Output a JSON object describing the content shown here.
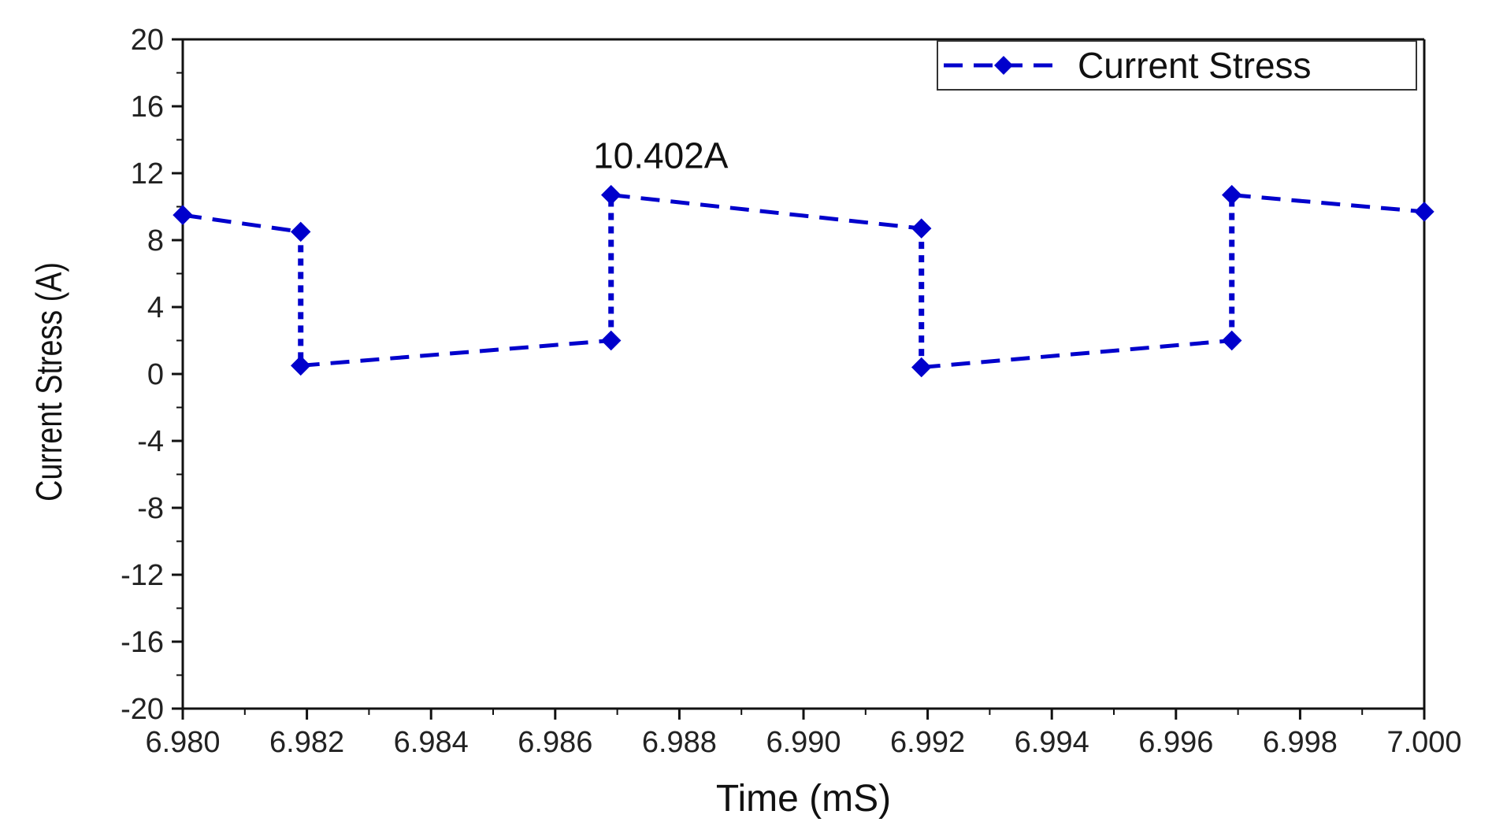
{
  "chart_data": {
    "type": "line",
    "title": "",
    "xlabel": "Time (mS)",
    "ylabel": "Current Stress (A)",
    "xlim": [
      6.98,
      7.0
    ],
    "ylim": [
      -20,
      20
    ],
    "x_ticks": [
      6.98,
      6.982,
      6.984,
      6.986,
      6.988,
      6.99,
      6.992,
      6.994,
      6.996,
      6.998,
      7.0
    ],
    "x_tick_labels": [
      "6.980",
      "6.982",
      "6.984",
      "6.986",
      "6.988",
      "6.990",
      "6.992",
      "6.994",
      "6.996",
      "6.998",
      "7.000"
    ],
    "y_ticks": [
      20,
      16,
      12,
      8,
      4,
      0,
      -4,
      -8,
      -12,
      -16,
      -20
    ],
    "y_tick_labels": [
      "20",
      "16",
      "12",
      "8",
      "4",
      "0",
      "-4",
      "-8",
      "-12",
      "-16",
      "-20"
    ],
    "grid": false,
    "legend_position": "top-right",
    "series": [
      {
        "name": "Current Stress",
        "color": "#0000cc",
        "marker": "diamond",
        "line_style": "dashed",
        "x": [
          6.98,
          6.9819,
          6.9819,
          6.9869,
          6.9869,
          6.9919,
          6.9919,
          6.9969,
          6.9969,
          7.0
        ],
        "y": [
          9.5,
          8.5,
          0.5,
          2.0,
          10.7,
          8.7,
          0.4,
          2.0,
          10.7,
          9.7
        ]
      }
    ],
    "annotations": [
      {
        "text": "10.402A",
        "x": 6.9877,
        "y": 12.3
      }
    ]
  }
}
